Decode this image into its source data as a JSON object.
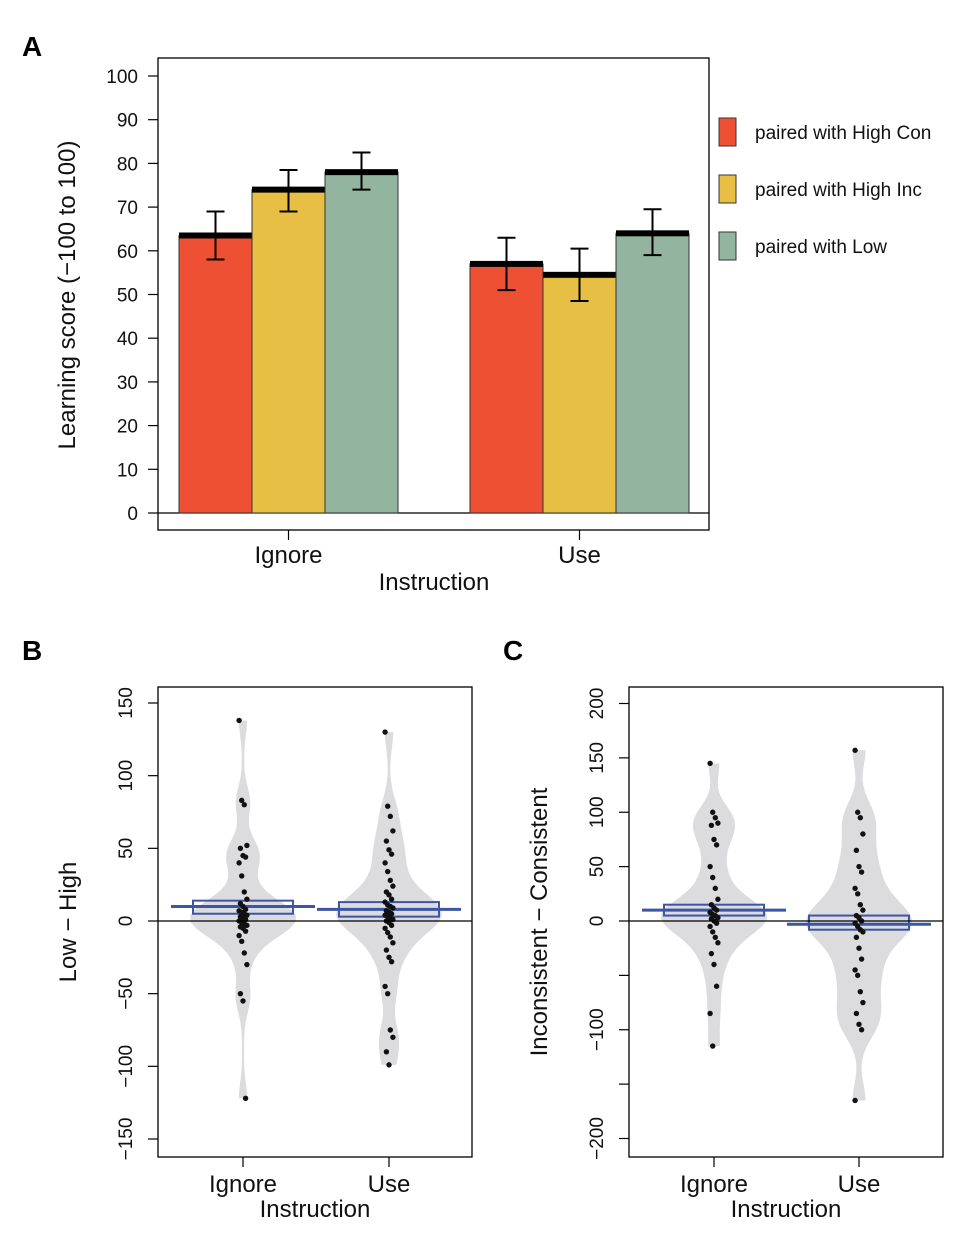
{
  "chart_data": [
    {
      "panel": "A",
      "type": "bar",
      "categories": [
        "Ignore",
        "Use"
      ],
      "xlabel": "Instruction",
      "ylabel": "Learning score (−100 to 100)",
      "ylim": [
        0,
        100
      ],
      "yticks": [
        0,
        10,
        20,
        30,
        40,
        50,
        60,
        70,
        80,
        90,
        100
      ],
      "legend_position": "right",
      "series": [
        {
          "name": "paired with High Con",
          "color": "#ee5033",
          "values": [
            63.5,
            57
          ],
          "err_low": [
            58,
            51
          ],
          "err_high": [
            69,
            63
          ]
        },
        {
          "name": "paired with High Inc",
          "color": "#e7bf45",
          "values": [
            74,
            54.5
          ],
          "err_low": [
            69,
            48.5
          ],
          "err_high": [
            78.5,
            60.5
          ]
        },
        {
          "name": "paired with Low",
          "color": "#93b5a0",
          "values": [
            78,
            64
          ],
          "err_low": [
            74,
            59
          ],
          "err_high": [
            82.5,
            69.5
          ]
        }
      ]
    },
    {
      "panel": "B",
      "type": "violin",
      "categories": [
        "Ignore",
        "Use"
      ],
      "xlabel": "Instruction",
      "ylabel": "Low − High",
      "ylim": [
        -160,
        150
      ],
      "yticks": [
        -150,
        -100,
        -50,
        0,
        50,
        100,
        150
      ],
      "ytick_labels": [
        "−150",
        "−100",
        "−50",
        "0",
        "50",
        "100",
        "150"
      ],
      "reference_line": 0,
      "groups": [
        {
          "name": "Ignore",
          "mean": 10,
          "box": [
            5,
            14
          ],
          "points": [
            138,
            83,
            80,
            52,
            50,
            45,
            44,
            40,
            31,
            20,
            15,
            12,
            10,
            8,
            7,
            6,
            5,
            4,
            3,
            2,
            1,
            0,
            -1,
            -2,
            -3,
            -4,
            -5,
            -7,
            -10,
            -14,
            -22,
            -30,
            -50,
            -55,
            -122
          ]
        },
        {
          "name": "Use",
          "mean": 8,
          "box": [
            3,
            13
          ],
          "points": [
            130,
            79,
            72,
            62,
            55,
            49,
            46,
            40,
            34,
            28,
            24,
            20,
            18,
            15,
            13,
            11,
            10,
            9,
            7,
            6,
            5,
            4,
            3,
            2,
            1,
            0,
            -1,
            -3,
            -5,
            -8,
            -11,
            -15,
            -20,
            -25,
            -28,
            -45,
            -50,
            -75,
            -80,
            -90,
            -99
          ]
        }
      ]
    },
    {
      "panel": "C",
      "type": "violin",
      "categories": [
        "Ignore",
        "Use"
      ],
      "xlabel": "Instruction",
      "ylabel": "Inconsistent − Consistent",
      "ylim": [
        -220,
        210
      ],
      "yticks": [
        -200,
        -150,
        -100,
        -50,
        0,
        50,
        100,
        150,
        200
      ],
      "ytick_labels": [
        "−200",
        "",
        "−100",
        "",
        "0",
        "50",
        "100",
        "150",
        "200"
      ],
      "reference_line": 0,
      "groups": [
        {
          "name": "Ignore",
          "mean": 10,
          "box": [
            5,
            15
          ],
          "points": [
            145,
            100,
            95,
            90,
            88,
            75,
            70,
            50,
            40,
            30,
            20,
            15,
            12,
            10,
            8,
            6,
            5,
            3,
            2,
            0,
            -2,
            -5,
            -10,
            -15,
            -20,
            -30,
            -40,
            -60,
            -85,
            -115
          ]
        },
        {
          "name": "Use",
          "mean": -3,
          "box": [
            -8,
            5
          ],
          "points": [
            157,
            100,
            95,
            80,
            65,
            50,
            45,
            30,
            25,
            15,
            10,
            5,
            3,
            0,
            -2,
            -5,
            -8,
            -10,
            -15,
            -25,
            -35,
            -45,
            -50,
            -65,
            -75,
            -85,
            -95,
            -100,
            -165
          ]
        }
      ]
    }
  ]
}
